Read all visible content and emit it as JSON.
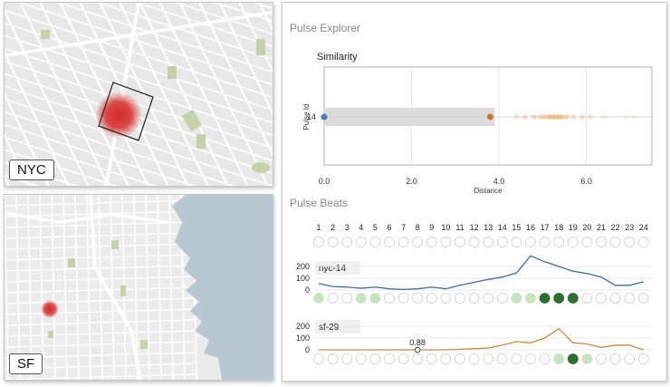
{
  "maps": [
    {
      "id": "nyc",
      "label": "NYC",
      "colors": {
        "land": "#e8e8e8",
        "road": "#ffffff",
        "park": "#c5d1a8",
        "hotspot": "#d42a2a"
      }
    },
    {
      "id": "sf",
      "label": "SF",
      "colors": {
        "land": "#ececec",
        "road": "#ffffff",
        "water": "#b8c8d3",
        "park": "#c5d1a8",
        "hotspot": "#d42a2a"
      }
    }
  ],
  "explorer": {
    "title": "Pulse Explorer",
    "similarity": {
      "title": "Similarity",
      "chart_data": {
        "type": "scatter",
        "title": "Similarity",
        "xlabel": "Distance",
        "ylabel": "Pulse Id",
        "xlim": [
          0,
          7.5
        ],
        "x_ticks": [
          "0.0",
          "2.0",
          "4.0",
          "6.0"
        ],
        "x_tick_values": [
          0,
          2,
          4,
          6
        ],
        "y_ticks": [
          "14"
        ],
        "selected_range": [
          0,
          3.9
        ],
        "grid": true,
        "points": [
          {
            "x": 0.0,
            "y": 14,
            "color": "#4a7fb5",
            "opacity": 1
          },
          {
            "x": 3.8,
            "y": 14,
            "color": "#cc7a29",
            "opacity": 1
          },
          {
            "x": 4.4,
            "y": 14,
            "color": "#e5a35a",
            "opacity": 0.3
          },
          {
            "x": 4.6,
            "y": 14,
            "color": "#e5a35a",
            "opacity": 0.3
          },
          {
            "x": 4.8,
            "y": 14,
            "color": "#e5a35a",
            "opacity": 0.35
          },
          {
            "x": 4.95,
            "y": 14,
            "color": "#e5a35a",
            "opacity": 0.4
          },
          {
            "x": 5.05,
            "y": 14,
            "color": "#e5a35a",
            "opacity": 0.45
          },
          {
            "x": 5.15,
            "y": 14,
            "color": "#e5a35a",
            "opacity": 0.5
          },
          {
            "x": 5.22,
            "y": 14,
            "color": "#e5a35a",
            "opacity": 0.5
          },
          {
            "x": 5.3,
            "y": 14,
            "color": "#e5a35a",
            "opacity": 0.55
          },
          {
            "x": 5.38,
            "y": 14,
            "color": "#e5a35a",
            "opacity": 0.5
          },
          {
            "x": 5.45,
            "y": 14,
            "color": "#e5a35a",
            "opacity": 0.45
          },
          {
            "x": 5.55,
            "y": 14,
            "color": "#e5a35a",
            "opacity": 0.4
          },
          {
            "x": 5.7,
            "y": 14,
            "color": "#e5a35a",
            "opacity": 0.3
          },
          {
            "x": 5.9,
            "y": 14,
            "color": "#e5a35a",
            "opacity": 0.3
          },
          {
            "x": 6.1,
            "y": 14,
            "color": "#e5a35a",
            "opacity": 0.25
          },
          {
            "x": 6.4,
            "y": 14,
            "color": "#e5a35a",
            "opacity": 0.2
          },
          {
            "x": 6.9,
            "y": 14,
            "color": "#e5a35a",
            "opacity": 0.15
          },
          {
            "x": 7.1,
            "y": 14,
            "color": "#e5a35a",
            "opacity": 0.15
          }
        ]
      }
    },
    "beats": {
      "title": "Pulse Beats",
      "hours": [
        "1",
        "2",
        "3",
        "4",
        "5",
        "6",
        "7",
        "8",
        "9",
        "10",
        "11",
        "12",
        "13",
        "14",
        "15",
        "16",
        "17",
        "18",
        "19",
        "20",
        "21",
        "22",
        "23",
        "24"
      ],
      "chart_data": [
        {
          "type": "line",
          "title": "nyc-14",
          "x": [
            1,
            2,
            3,
            4,
            5,
            6,
            7,
            8,
            9,
            10,
            11,
            12,
            13,
            14,
            15,
            16,
            17,
            18,
            19,
            20,
            21,
            22,
            23,
            24
          ],
          "series": [
            {
              "values": [
                55,
                30,
                25,
                15,
                25,
                10,
                5,
                10,
                25,
                10,
                40,
                65,
                90,
                110,
                145,
                290,
                240,
                200,
                160,
                140,
                110,
                40,
                40,
                70
              ],
              "color": "#3f6f9b"
            }
          ],
          "yticks": [
            "0",
            "100",
            "200"
          ],
          "ylim": [
            0,
            250
          ],
          "beat_levels": [
            1,
            0,
            0,
            1,
            1,
            0,
            0,
            0,
            0,
            0,
            0,
            0,
            0,
            0,
            1,
            1,
            3,
            3,
            3,
            0,
            0,
            0,
            0,
            0
          ]
        },
        {
          "type": "line",
          "title": "sf-29",
          "x": [
            1,
            2,
            3,
            4,
            5,
            6,
            7,
            8,
            9,
            10,
            11,
            12,
            13,
            14,
            15,
            16,
            17,
            18,
            19,
            20,
            21,
            22,
            23,
            24
          ],
          "series": [
            {
              "values": [
                0,
                0,
                0,
                0,
                0,
                0,
                0,
                0,
                0,
                0,
                5,
                10,
                15,
                40,
                70,
                60,
                100,
                180,
                60,
                50,
                20,
                40,
                40,
                0
              ],
              "color": "#cc8a3d"
            }
          ],
          "yticks": [
            "0",
            "100",
            "200"
          ],
          "ylim": [
            0,
            250
          ],
          "annotation": {
            "x": 8,
            "y": 0,
            "label": "0.88"
          },
          "beat_levels": [
            0,
            0,
            0,
            0,
            0,
            0,
            0,
            0,
            0,
            0,
            0,
            0,
            0,
            0,
            0,
            0,
            0,
            1,
            3,
            1,
            0,
            0,
            0,
            0
          ]
        }
      ]
    }
  }
}
